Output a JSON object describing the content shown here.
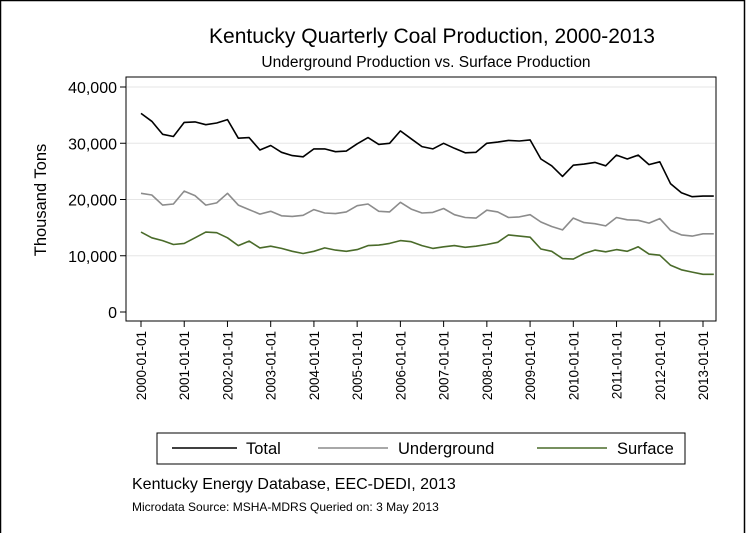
{
  "chart_data": {
    "type": "line",
    "title": "Kentucky Quarterly Coal Production, 2000-2013",
    "subtitle": "Underground Production vs. Surface Production",
    "xlabel": "",
    "ylabel": "Thousand Tons",
    "ylim": [
      0,
      40000
    ],
    "yticks": [
      0,
      10000,
      20000,
      30000,
      40000
    ],
    "ytick_labels": [
      "0",
      "10,000",
      "20,000",
      "30,000",
      "40,000"
    ],
    "xticks": [
      "2000-01-01",
      "2001-01-01",
      "2002-01-01",
      "2003-01-01",
      "2004-01-01",
      "2005-01-01",
      "2006-01-01",
      "2007-01-01",
      "2008-01-01",
      "2009-01-01",
      "2010-01-01",
      "2011-01-01",
      "2012-01-01",
      "2013-01-01"
    ],
    "x": [
      "2000-Q1",
      "2000-Q2",
      "2000-Q3",
      "2000-Q4",
      "2001-Q1",
      "2001-Q2",
      "2001-Q3",
      "2001-Q4",
      "2002-Q1",
      "2002-Q2",
      "2002-Q3",
      "2002-Q4",
      "2003-Q1",
      "2003-Q2",
      "2003-Q3",
      "2003-Q4",
      "2004-Q1",
      "2004-Q2",
      "2004-Q3",
      "2004-Q4",
      "2005-Q1",
      "2005-Q2",
      "2005-Q3",
      "2005-Q4",
      "2006-Q1",
      "2006-Q2",
      "2006-Q3",
      "2006-Q4",
      "2007-Q1",
      "2007-Q2",
      "2007-Q3",
      "2007-Q4",
      "2008-Q1",
      "2008-Q2",
      "2008-Q3",
      "2008-Q4",
      "2009-Q1",
      "2009-Q2",
      "2009-Q3",
      "2009-Q4",
      "2010-Q1",
      "2010-Q2",
      "2010-Q3",
      "2010-Q4",
      "2011-Q1",
      "2011-Q2",
      "2011-Q3",
      "2011-Q4",
      "2012-Q1",
      "2012-Q2",
      "2012-Q3",
      "2012-Q4",
      "2013-Q1",
      "2013-Q2"
    ],
    "series": [
      {
        "name": "Total",
        "color": "#000000",
        "values": [
          35300,
          33900,
          31600,
          31200,
          33700,
          33800,
          33300,
          33600,
          34200,
          30900,
          31000,
          28800,
          29600,
          28400,
          27800,
          27600,
          29000,
          29000,
          28500,
          28600,
          29900,
          31000,
          29800,
          30000,
          32200,
          30800,
          29400,
          29000,
          30000,
          29100,
          28300,
          28400,
          30000,
          30200,
          30500,
          30400,
          30600,
          27200,
          26000,
          24100,
          26100,
          26300,
          26600,
          26000,
          27900,
          27200,
          27900,
          26200,
          26700,
          22800,
          21200,
          20500,
          20600,
          20600
        ]
      },
      {
        "name": "Underground",
        "color": "#8c8c8c",
        "values": [
          21100,
          20800,
          19000,
          19200,
          21500,
          20700,
          19000,
          19400,
          21100,
          19000,
          18200,
          17400,
          17900,
          17100,
          17000,
          17200,
          18200,
          17600,
          17500,
          17800,
          18900,
          19200,
          17900,
          17800,
          19500,
          18300,
          17600,
          17700,
          18400,
          17300,
          16800,
          16700,
          18100,
          17800,
          16800,
          16900,
          17300,
          16000,
          15200,
          14600,
          16700,
          15900,
          15700,
          15300,
          16800,
          16400,
          16300,
          15800,
          16600,
          14500,
          13700,
          13500,
          13900,
          13900
        ]
      },
      {
        "name": "Surface",
        "color": "#4a6b2a",
        "values": [
          14200,
          13200,
          12700,
          12000,
          12200,
          13200,
          14200,
          14100,
          13200,
          11800,
          12600,
          11400,
          11700,
          11300,
          10800,
          10400,
          10800,
          11400,
          11000,
          10800,
          11100,
          11800,
          11900,
          12200,
          12700,
          12500,
          11800,
          11300,
          11600,
          11800,
          11500,
          11700,
          12000,
          12400,
          13700,
          13500,
          13300,
          11200,
          10800,
          9500,
          9400,
          10400,
          11000,
          10700,
          11100,
          10800,
          11600,
          10300,
          10100,
          8300,
          7500,
          7100,
          6700,
          6700
        ]
      }
    ],
    "legend": {
      "position": "bottom",
      "entries": [
        "Total",
        "Underground",
        "Surface"
      ]
    },
    "grid": true
  },
  "source": {
    "line1": "Kentucky Energy Database, EEC-DEDI, 2013",
    "line2": "Microdata Source: MSHA-MDRS Queried on: 3 May 2013"
  }
}
